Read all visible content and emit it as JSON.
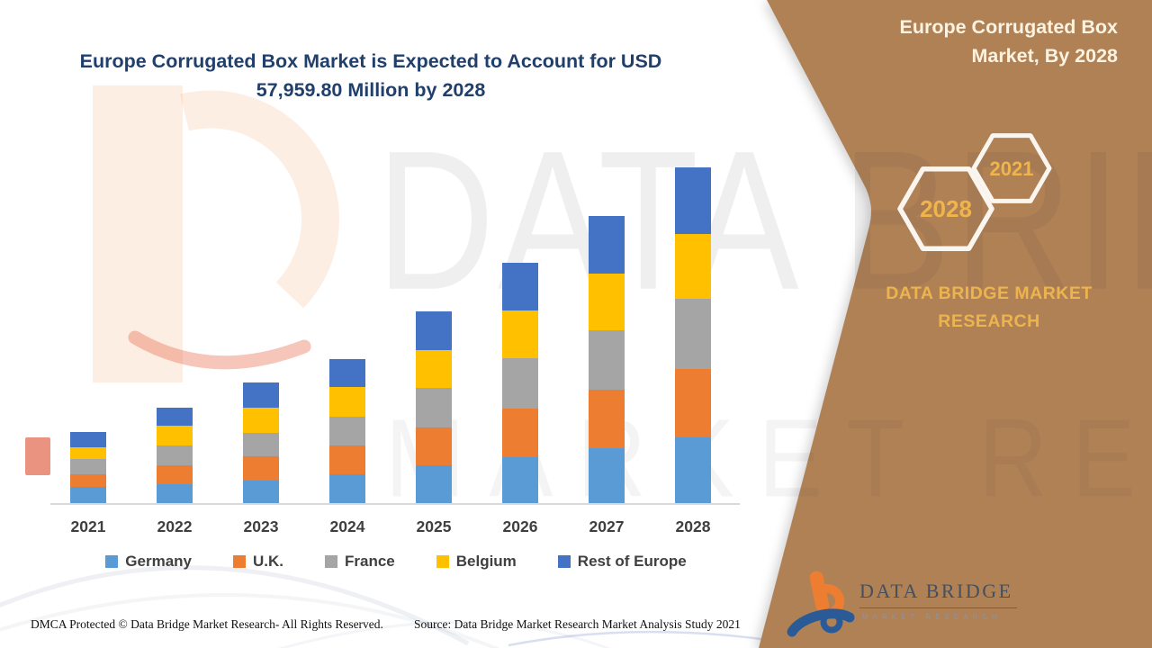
{
  "title": {
    "text": "Europe Corrugated Box Market is Expected to Account for USD 57,959.80 Million by 2028"
  },
  "sidebar": {
    "title": "Europe Corrugated Box Market, By 2028",
    "hexagons": [
      {
        "label": "2028"
      },
      {
        "label": "2021"
      }
    ],
    "brand_text": "DATA BRIDGE MARKET RESEARCH",
    "logo": {
      "name": "DATA BRIDGE",
      "sub": "MARKET RESEARCH"
    },
    "colors": {
      "background": "#B18156",
      "accent_gold": "#EFB54B",
      "title_text": "#FCF3E1",
      "hexagon_stroke": "#FAF6EF"
    }
  },
  "watermark": {
    "line1": "DATA BRIDGE",
    "line2": "MARKET RESEARCH"
  },
  "footer": {
    "left": "DMCA Protected © Data Bridge Market Research- All Rights Reserved.",
    "right": "Source: Data Bridge Market Research Market Analysis Study 2021"
  },
  "chart_data": {
    "type": "bar",
    "stacked": true,
    "title": "Europe Corrugated Box Market is Expected to Account for USD 57,959.80 Million by 2028",
    "unit": "USD Million",
    "categories": [
      "2021",
      "2022",
      "2023",
      "2024",
      "2025",
      "2026",
      "2027",
      "2028"
    ],
    "series": [
      {
        "name": "Germany",
        "color": "#5B9BD5",
        "values": [
          2800,
          3260,
          3890,
          4970,
          6530,
          7930,
          9480,
          11340
        ]
      },
      {
        "name": "U.K.",
        "color": "#ED7D31",
        "values": [
          2180,
          3260,
          4200,
          4970,
          6530,
          8390,
          10100,
          11810
        ]
      },
      {
        "name": "France",
        "color": "#A5A5A5",
        "values": [
          2640,
          3420,
          4040,
          4970,
          6840,
          8700,
          10260,
          12120
        ]
      },
      {
        "name": "Belgium",
        "color": "#FFC000",
        "values": [
          2020,
          3420,
          4350,
          5130,
          6530,
          8240,
          9790,
          11190
        ]
      },
      {
        "name": "Rest of Europe",
        "color": "#4472C4",
        "values": [
          2640,
          3110,
          4350,
          4820,
          6680,
          8240,
          9950,
          11500
        ]
      }
    ],
    "totals": [
      12280,
      16470,
      20830,
      24860,
      33110,
      41500,
      49580,
      57960
    ],
    "annotations": {
      "total_2028_musd": 57959.8
    },
    "legend_position": "bottom",
    "grid": false,
    "y_axis_visible": false,
    "x_axis_line_color": "#D9D9D9"
  }
}
